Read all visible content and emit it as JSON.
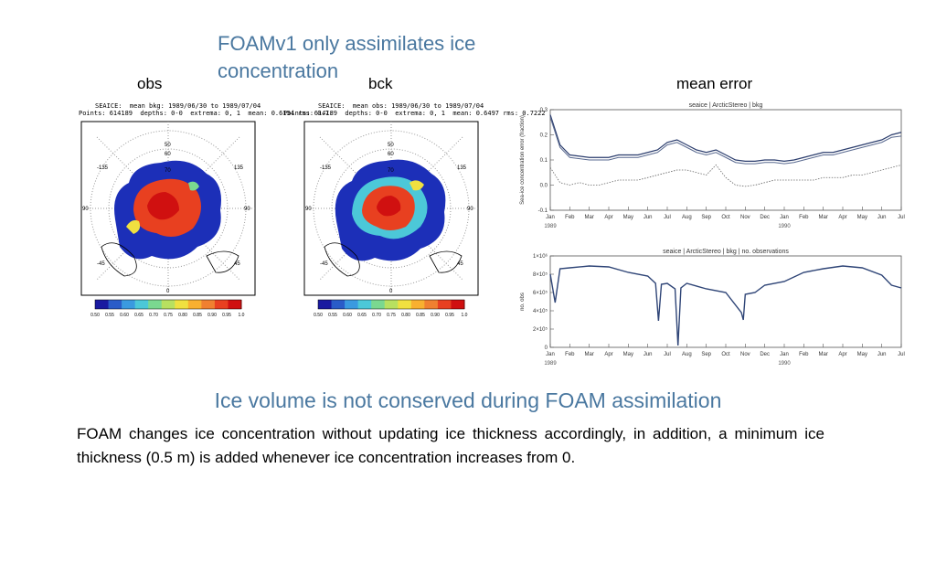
{
  "slide": {
    "title": "FOAMv1 only assimilates ice concentration",
    "labels": {
      "obs": "obs",
      "bck": "bck",
      "mean_error": "mean error"
    },
    "heading": "Ice volume is not conserved during FOAM assimilation",
    "body": "FOAM changes ice concentration without updating ice thickness accordingly, in addition, a minimum ice thickness (0.5 m) is added whenever ice concentration increases from 0."
  },
  "maps": [
    {
      "header_line1": "SEAICE:  mean bkg: 1989/06/30 to 1989/07/04",
      "header_line2": "Points: 614189  depths: 0-0  extrema: 0, 1  mean: 0.6154 rms: 0.7:",
      "lon_labels": [
        "-135",
        "135",
        "90",
        "90",
        "-45",
        "45",
        "0"
      ],
      "lat_labels": [
        "50",
        "60",
        "70"
      ]
    },
    {
      "header_line1": "SEAICE:  mean obs: 1989/06/30 to 1989/07/04",
      "header_line2": "Points: 614189  depths: 0-0  extrema: 0, 1  mean: 0.6497 rms: 0.7222",
      "lon_labels": [
        "-135",
        "135",
        "90",
        "90",
        "-45",
        "45",
        "0"
      ],
      "lat_labels": [
        "50",
        "60",
        "70"
      ]
    }
  ],
  "colorbar": {
    "ticks": [
      "0.50",
      "0.55",
      "0.60",
      "0.65",
      "0.70",
      "0.75",
      "0.80",
      "0.85",
      "0.90",
      "0.95",
      "1.0"
    ],
    "colors": [
      "#1a1aa0",
      "#2a5cc8",
      "#3a9ae0",
      "#4cc8d8",
      "#7ad890",
      "#b8e060",
      "#f0e040",
      "#f8b030",
      "#f08030",
      "#e84020",
      "#d01010"
    ]
  },
  "chart_data": [
    {
      "type": "line",
      "title": "seaice | ArcticStereo | bkg",
      "ylabel": "Sea-ice concentration error (fraction)",
      "ylim": [
        -0.1,
        0.3
      ],
      "yticks": [
        "0.3",
        "0.2",
        "0.1",
        "0.0",
        "-0.1"
      ],
      "categories": [
        "Jan",
        "Feb",
        "Mar",
        "Apr",
        "May",
        "Jun",
        "Jul",
        "Aug",
        "Sep",
        "Oct",
        "Nov",
        "Dec",
        "Jan",
        "Feb",
        "Mar",
        "Apr",
        "May",
        "Jun",
        "Jul"
      ],
      "year_labels": [
        "1989",
        "1990"
      ],
      "x": [
        0,
        0.5,
        1,
        1.5,
        2,
        2.5,
        3,
        3.5,
        4,
        4.5,
        5,
        5.5,
        6,
        6.5,
        7,
        7.5,
        8,
        8.5,
        9,
        9.5,
        10,
        10.5,
        11,
        11.5,
        12,
        12.5,
        13,
        13.5,
        14,
        14.5,
        15,
        15.5,
        16,
        16.5,
        17,
        17.5,
        18
      ],
      "series": [
        {
          "values": [
            0.28,
            0.16,
            0.12,
            0.115,
            0.11,
            0.11,
            0.11,
            0.12,
            0.12,
            0.12,
            0.13,
            0.14,
            0.17,
            0.18,
            0.16,
            0.14,
            0.13,
            0.14,
            0.12,
            0.1,
            0.095,
            0.095,
            0.1,
            0.1,
            0.095,
            0.1,
            0.11,
            0.12,
            0.13,
            0.13,
            0.14,
            0.15,
            0.16,
            0.17,
            0.18,
            0.2,
            0.21
          ]
        },
        {
          "values": [
            0.27,
            0.15,
            0.11,
            0.105,
            0.1,
            0.1,
            0.1,
            0.11,
            0.11,
            0.11,
            0.12,
            0.13,
            0.16,
            0.17,
            0.15,
            0.13,
            0.12,
            0.13,
            0.11,
            0.09,
            0.085,
            0.085,
            0.09,
            0.09,
            0.085,
            0.09,
            0.1,
            0.11,
            0.12,
            0.12,
            0.13,
            0.14,
            0.15,
            0.16,
            0.17,
            0.19,
            0.195
          ]
        },
        {
          "values": [
            0.07,
            0.01,
            0.0,
            0.01,
            0.0,
            0.0,
            0.01,
            0.02,
            0.02,
            0.02,
            0.03,
            0.04,
            0.05,
            0.06,
            0.06,
            0.05,
            0.04,
            0.08,
            0.03,
            0.0,
            -0.005,
            0.0,
            0.01,
            0.02,
            0.02,
            0.02,
            0.02,
            0.02,
            0.03,
            0.03,
            0.03,
            0.04,
            0.04,
            0.05,
            0.06,
            0.07,
            0.08
          ]
        }
      ]
    },
    {
      "type": "line",
      "title": "seaice | ArcticStereo | bkg | no. observations",
      "ylabel": "no. obs",
      "ylim": [
        0,
        1000000
      ],
      "yticks": [
        "1×10⁶",
        "8×10⁵",
        "6×10⁵",
        "4×10⁵",
        "2×10⁵",
        "0"
      ],
      "categories": [
        "Jan",
        "Feb",
        "Mar",
        "Apr",
        "May",
        "Jun",
        "Jul",
        "Aug",
        "Sep",
        "Oct",
        "Nov",
        "Dec",
        "Jan",
        "Feb",
        "Mar",
        "Apr",
        "May",
        "Jun",
        "Jul"
      ],
      "year_labels": [
        "1989",
        "1990"
      ],
      "x": [
        0,
        0.25,
        0.5,
        1,
        2,
        3,
        4,
        5,
        5.4,
        5.55,
        5.7,
        6,
        6.4,
        6.55,
        6.7,
        7,
        8,
        9,
        9.8,
        9.9,
        10,
        10.5,
        11,
        12,
        13,
        14,
        15,
        16,
        17,
        17.5,
        18
      ],
      "series": [
        {
          "name": "no. observations",
          "values": [
            800000,
            490000,
            860000,
            870000,
            890000,
            880000,
            820000,
            780000,
            700000,
            290000,
            690000,
            700000,
            640000,
            20000,
            650000,
            700000,
            640000,
            600000,
            380000,
            300000,
            580000,
            600000,
            680000,
            720000,
            820000,
            860000,
            890000,
            870000,
            790000,
            680000,
            650000
          ]
        }
      ]
    }
  ]
}
